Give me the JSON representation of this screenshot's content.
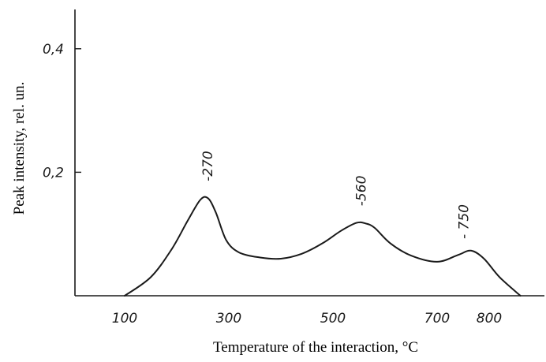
{
  "chart_data": {
    "type": "line",
    "title": "",
    "xlabel": "Temperature of the interaction, °C",
    "ylabel": "Peak intensity, rel. un.",
    "xlim": [
      0,
      900
    ],
    "ylim": [
      0,
      0.45
    ],
    "x_ticks": [
      {
        "value": 100,
        "label": "100"
      },
      {
        "value": 300,
        "label": "300"
      },
      {
        "value": 500,
        "label": "500"
      },
      {
        "value": 700,
        "label": "700"
      },
      {
        "value": 800,
        "label": "800"
      }
    ],
    "y_ticks": [
      {
        "value": 0.2,
        "label": "0,2"
      },
      {
        "value": 0.4,
        "label": "0,4"
      }
    ],
    "series": [
      {
        "x": [
          100,
          150,
          190,
          220,
          245,
          260,
          275,
          295,
          320,
          360,
          400,
          440,
          480,
          515,
          545,
          563,
          580,
          610,
          650,
          700,
          740,
          765,
          790,
          820,
          860
        ],
        "y": [
          0.0,
          0.03,
          0.075,
          0.12,
          0.155,
          0.158,
          0.135,
          0.09,
          0.07,
          0.062,
          0.06,
          0.068,
          0.085,
          0.105,
          0.118,
          0.117,
          0.11,
          0.085,
          0.065,
          0.055,
          0.066,
          0.073,
          0.06,
          0.03,
          0.0
        ]
      }
    ],
    "annotations": [
      {
        "text": "-270",
        "x": 268,
        "y": 0.21
      },
      {
        "text": "-560",
        "x": 563,
        "y": 0.17
      },
      {
        "text": "- 750",
        "x": 760,
        "y": 0.12
      }
    ],
    "grid": false,
    "legend": "none"
  }
}
